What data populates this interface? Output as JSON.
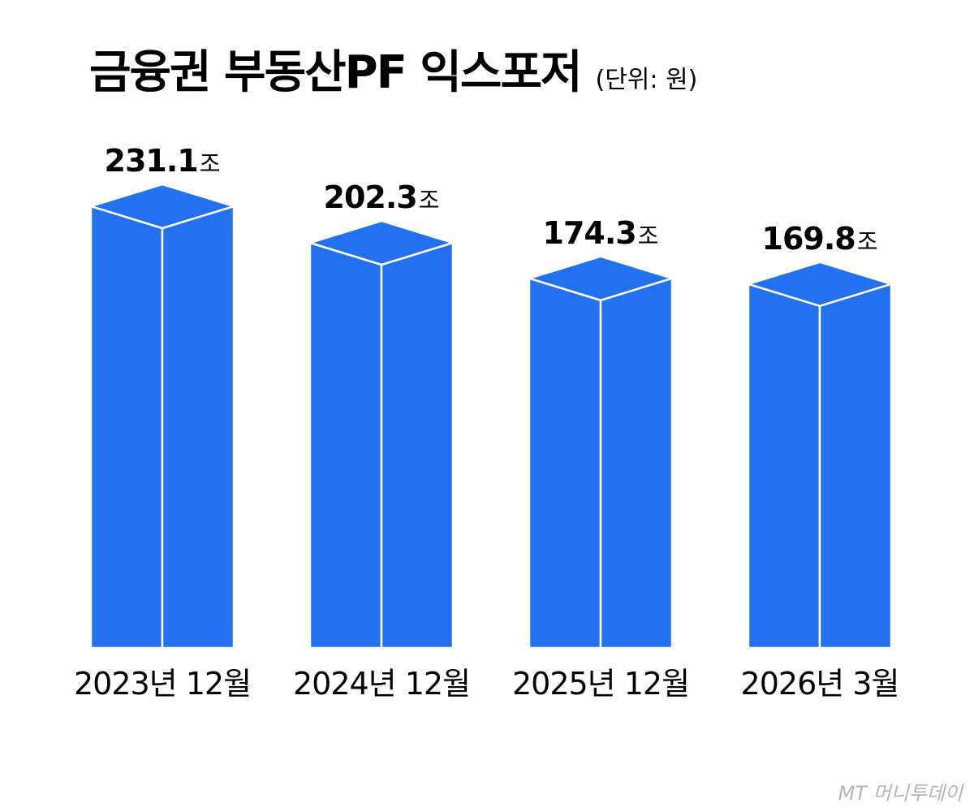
{
  "chart_data": {
    "type": "bar",
    "title": "금융권 부동산PF 익스포저",
    "subtitle": "(단위: 원)",
    "categories": [
      "2023년 12월",
      "2024년 12월",
      "2025년 12월",
      "2026년 3월"
    ],
    "values": [
      231.1,
      202.3,
      174.3,
      169.8
    ],
    "data_labels": [
      "231.1",
      "202.3",
      "174.3",
      "169.8"
    ],
    "value_unit": "조",
    "bar_color": "#2371ee",
    "edge_color": "#ffffff",
    "grid": false
  },
  "watermark": "MT 머니투데이"
}
